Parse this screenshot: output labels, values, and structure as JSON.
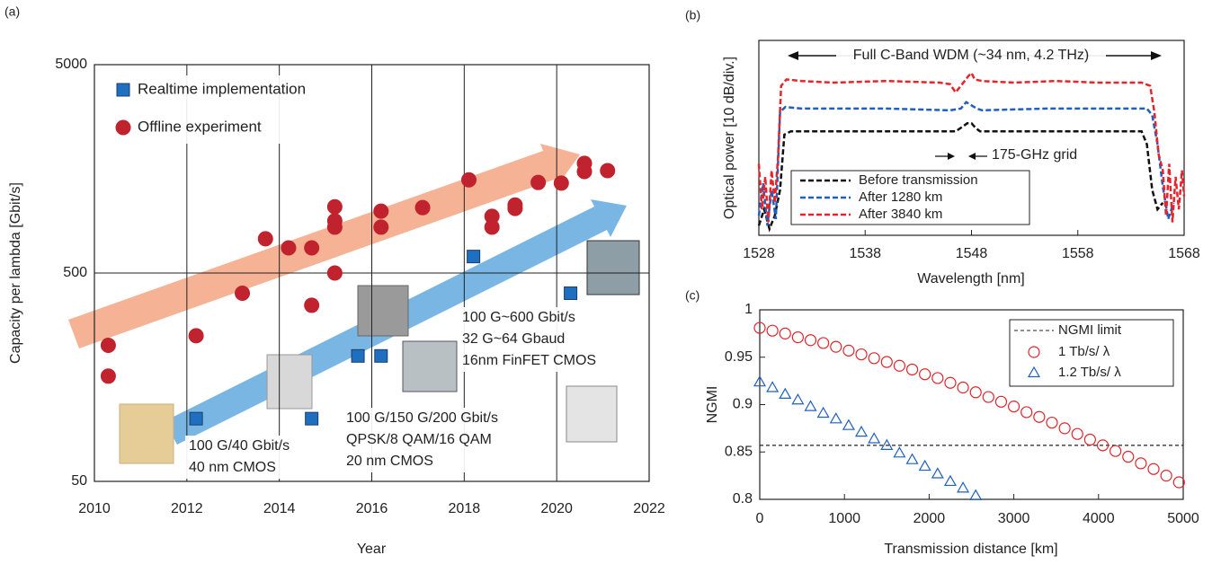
{
  "chart_data": [
    {
      "type": "scatter",
      "panel": "(a)",
      "xlabel": "Year",
      "ylabel": "Capacity per lambda [Gbit/s]",
      "xlim": [
        2010,
        2022
      ],
      "xticks": [
        2010,
        2012,
        2014,
        2016,
        2018,
        2020,
        2022
      ],
      "ylim": [
        50,
        5000
      ],
      "yticks": [
        50,
        500,
        5000
      ],
      "log_y": true,
      "grid": true,
      "series": [
        {
          "name": "Realtime implementation",
          "color": "#1f6fc0",
          "marker": "square",
          "filled": true,
          "x": [
            2012.2,
            2014.7,
            2015.7,
            2016.2,
            2018.2,
            2020.3
          ],
          "values": [
            100,
            100,
            200,
            200,
            600,
            400
          ]
        },
        {
          "name": "Offline experiment",
          "color": "#c0232d",
          "marker": "circle",
          "filled": true,
          "x": [
            2010.3,
            2010.3,
            2012.2,
            2013.2,
            2013.7,
            2014.2,
            2014.7,
            2014.7,
            2015.2,
            2015.2,
            2015.2,
            2015.2,
            2016.2,
            2016.2,
            2017.1,
            2018.1,
            2018.6,
            2018.6,
            2019.1,
            2019.1,
            2019.6,
            2020.1,
            2020.6,
            2020.6,
            2021.1
          ],
          "values": [
            225,
            160,
            250,
            400,
            730,
            660,
            660,
            350,
            1040,
            890,
            830,
            500,
            990,
            830,
            1030,
            1400,
            935,
            830,
            1060,
            1020,
            1360,
            1350,
            1680,
            1535,
            1550
          ]
        }
      ],
      "annotations": [
        {
          "lines": [
            "100 G/40 Gbit/s",
            "40 nm CMOS"
          ]
        },
        {
          "lines": [
            "100 G/150 G/200 Gbit/s",
            "QPSK/8 QAM/16 QAM",
            "20 nm CMOS"
          ]
        },
        {
          "lines": [
            "100 G~600 Gbit/s",
            "32 G~64 Gbaud",
            "16nm FinFET CMOS"
          ]
        }
      ]
    },
    {
      "type": "line",
      "panel": "(b)",
      "xlabel": "Wavelength [nm]",
      "ylabel": "Optical power [10 dB/div.]",
      "xlim": [
        1528,
        1568
      ],
      "xticks": [
        1528,
        1538,
        1548,
        1558,
        1568
      ],
      "ylim": [
        0,
        60
      ],
      "series": [
        {
          "name": "Before transmission",
          "color": "#111111",
          "x": [
            1528,
            1528.5,
            1529,
            1529.5,
            1530,
            1530.4,
            1531,
            1540,
            1546.5,
            1547.2,
            1547.6,
            1548,
            1548.4,
            1548.8,
            1555,
            1564,
            1564.5,
            1565,
            1565.5,
            1566
          ],
          "values": [
            3,
            8,
            2,
            6,
            14,
            31,
            32,
            32,
            32,
            33.5,
            34.5,
            34.5,
            33,
            32,
            32,
            32,
            28,
            14,
            8,
            10
          ]
        },
        {
          "name": "After 1280 km",
          "color": "#1f5fbf",
          "x": [
            1528,
            1528.4,
            1528.8,
            1529.2,
            1529.6,
            1530,
            1530.5,
            1532,
            1540,
            1546,
            1547,
            1547.5,
            1548,
            1548.5,
            1549,
            1555,
            1560,
            1564.5,
            1565,
            1565.5,
            1566,
            1566.5,
            1567
          ],
          "values": [
            6,
            16,
            3,
            14,
            5,
            38,
            39.5,
            39,
            39,
            38.5,
            39,
            41,
            40,
            39,
            38.5,
            39,
            39,
            39,
            37,
            28,
            15,
            5,
            10
          ]
        },
        {
          "name": "After 3840 km",
          "color": "#e8242a",
          "x": [
            1528,
            1528.3,
            1528.6,
            1528.9,
            1529.2,
            1529.5,
            1529.8,
            1530.1,
            1530.6,
            1532,
            1535,
            1540,
            1545,
            1546,
            1546.5,
            1547,
            1547.7,
            1548,
            1548.3,
            1549,
            1552,
            1556,
            1560,
            1564,
            1564.8,
            1565.2,
            1565.6,
            1566,
            1566.3,
            1566.6,
            1566.9,
            1567.2,
            1567.5,
            1567.8,
            1568
          ],
          "values": [
            22,
            8,
            18,
            4,
            20,
            10,
            24,
            46,
            48,
            47.5,
            47,
            47.5,
            47,
            46.5,
            44,
            46,
            49,
            50,
            48,
            47.5,
            47,
            47.5,
            47,
            47,
            46,
            38,
            25,
            20,
            6,
            22,
            4,
            18,
            8,
            20,
            12
          ]
        }
      ],
      "annotations": [
        {
          "lines": [
            "Full C-Band WDM (~34 nm, 4.2 THz)"
          ]
        },
        {
          "lines": [
            "175-GHz grid"
          ]
        }
      ]
    },
    {
      "type": "scatter",
      "panel": "(c)",
      "xlabel": "Transmission distance [km]",
      "ylabel": "NGMI",
      "xlim": [
        0,
        5000
      ],
      "xticks": [
        0,
        1000,
        2000,
        3000,
        4000,
        5000
      ],
      "ylim": [
        0.8,
        1
      ],
      "yticks": [
        0.8,
        0.85,
        0.9,
        0.95,
        1
      ],
      "hlines": [
        {
          "name": "NGMI limit",
          "value": 0.857,
          "color": "#222222"
        }
      ],
      "series": [
        {
          "name": "1 Tb/s/ λ",
          "color": "#e0242a",
          "marker": "circle",
          "filled": false,
          "x": [
            0,
            150,
            300,
            450,
            600,
            750,
            900,
            1050,
            1200,
            1350,
            1500,
            1650,
            1800,
            1950,
            2100,
            2250,
            2400,
            2550,
            2700,
            2850,
            3000,
            3150,
            3300,
            3450,
            3600,
            3750,
            3900,
            4050,
            4200,
            4350,
            4500,
            4650,
            4800,
            4950
          ],
          "values": [
            0.981,
            0.978,
            0.975,
            0.971,
            0.968,
            0.965,
            0.961,
            0.957,
            0.953,
            0.949,
            0.945,
            0.941,
            0.937,
            0.932,
            0.928,
            0.923,
            0.918,
            0.913,
            0.908,
            0.903,
            0.898,
            0.892,
            0.887,
            0.881,
            0.875,
            0.869,
            0.863,
            0.857,
            0.851,
            0.845,
            0.838,
            0.832,
            0.825,
            0.818
          ]
        },
        {
          "name": "1.2 Tb/s/ λ",
          "color": "#1f5fbf",
          "marker": "triangle",
          "filled": false,
          "x": [
            0,
            150,
            300,
            450,
            600,
            750,
            900,
            1050,
            1200,
            1350,
            1500,
            1650,
            1800,
            1950,
            2100,
            2250,
            2400,
            2550
          ],
          "values": [
            0.924,
            0.918,
            0.911,
            0.905,
            0.898,
            0.891,
            0.885,
            0.878,
            0.871,
            0.864,
            0.857,
            0.849,
            0.842,
            0.835,
            0.827,
            0.819,
            0.812,
            0.804
          ]
        }
      ]
    }
  ]
}
